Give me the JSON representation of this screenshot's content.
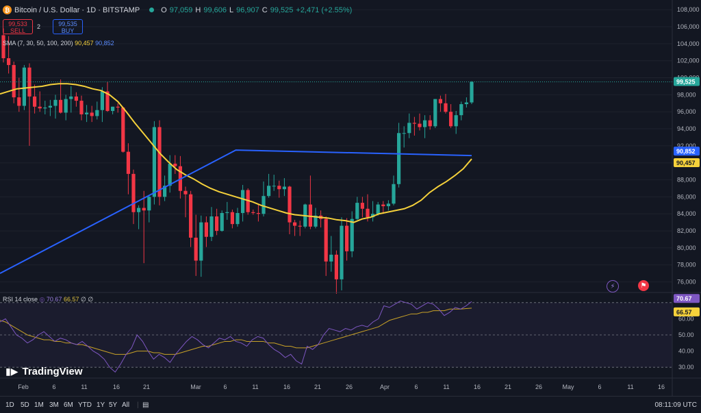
{
  "header": {
    "symbol": "Bitcoin / U.S. Dollar · 1D · BITSTAMP",
    "open_label": "O",
    "open": "97,059",
    "high_label": "H",
    "high": "99,606",
    "low_label": "L",
    "low": "96,907",
    "close_label": "C",
    "close": "99,525",
    "change": "+2,471 (+2.55%)"
  },
  "trade": {
    "sell_price": "99,533",
    "sell_label": "SELL",
    "spread": "2",
    "buy_price": "99,535",
    "buy_label": "BUY"
  },
  "sma": {
    "label": "SMA (7, 30, 50, 100, 200)",
    "value1": "90,457",
    "value2": "90,852"
  },
  "rsi": {
    "label": "RSI 14 close",
    "value1": "70.67",
    "value2": "66.57",
    "extra": "∅ ∅"
  },
  "brand": "TradingView",
  "price_axis": {
    "ticks": [
      "108,000",
      "106,000",
      "104,000",
      "102,000",
      "100,000",
      "98,000",
      "96,000",
      "94,000",
      "92,000",
      "90,000",
      "88,000",
      "86,000",
      "84,000",
      "82,000",
      "80,000",
      "78,000",
      "76,000"
    ],
    "last_price": "99,525",
    "sma_blue_label": "90,852",
    "sma_yellow_label": "90,457"
  },
  "rsi_axis": {
    "ticks": [
      "60.00",
      "50.00",
      "40.00",
      "30.00"
    ],
    "rsi_label": "70.67",
    "ma_label": "66.57"
  },
  "time_axis": [
    "Feb",
    "6",
    "11",
    "16",
    "21",
    "Mar",
    "6",
    "11",
    "16",
    "21",
    "26",
    "Apr",
    "6",
    "11",
    "16",
    "21",
    "26",
    "May",
    "6",
    "11",
    "16"
  ],
  "timeframes": [
    "1D",
    "5D",
    "1M",
    "3M",
    "6M",
    "YTD",
    "1Y",
    "5Y",
    "All"
  ],
  "clock": "08:11:09 UTC",
  "colors": {
    "up": "#26a69a",
    "down": "#f23645",
    "sma_fast": "#f5d13b",
    "sma_slow": "#2962ff",
    "rsi": "#7e57c2",
    "rsi_ma": "#c9a227"
  },
  "chart_data": {
    "type": "candlestick",
    "title": "Bitcoin / U.S. Dollar · 1D · BITSTAMP",
    "x_start_label": "Feb",
    "candles": [
      [
        105000,
        105800,
        101800,
        102300
      ],
      [
        102300,
        104900,
        100500,
        101500
      ],
      [
        101500,
        101900,
        97000,
        97700
      ],
      [
        97700,
        100000,
        96000,
        96700
      ],
      [
        96700,
        101500,
        96200,
        101200
      ],
      [
        101200,
        101700,
        92000,
        97800
      ],
      [
        97800,
        99200,
        95800,
        96600
      ],
      [
        96600,
        98400,
        96000,
        96400
      ],
      [
        96400,
        97300,
        95700,
        96500
      ],
      [
        96500,
        97400,
        95500,
        96700
      ],
      [
        96700,
        98000,
        95200,
        97400
      ],
      [
        97400,
        99800,
        95800,
        95900
      ],
      [
        95900,
        98000,
        95000,
        97500
      ],
      [
        97500,
        99000,
        95900,
        97800
      ],
      [
        97800,
        98300,
        96600,
        97300
      ],
      [
        97300,
        97900,
        95000,
        95700
      ],
      [
        95700,
        96800,
        94800,
        95900
      ],
      [
        95900,
        96700,
        94800,
        95500
      ],
      [
        95500,
        97200,
        95100,
        96200
      ],
      [
        96200,
        98900,
        94800,
        98400
      ],
      [
        98400,
        99500,
        96000,
        96100
      ],
      [
        96100,
        96600,
        95700,
        96600
      ],
      [
        96600,
        97000,
        95900,
        96500
      ],
      [
        96500,
        96600,
        91200,
        91300
      ],
      [
        91300,
        92300,
        86300,
        88700
      ],
      [
        88700,
        89200,
        82800,
        84200
      ],
      [
        84200,
        85000,
        82200,
        84700
      ],
      [
        84700,
        86700,
        78200,
        84400
      ],
      [
        84400,
        86100,
        83000,
        86000
      ],
      [
        86000,
        94900,
        85100,
        94200
      ],
      [
        94200,
        95000,
        85000,
        86000
      ],
      [
        86000,
        88500,
        85500,
        87300
      ],
      [
        87300,
        90900,
        86500,
        89900
      ],
      [
        89900,
        90900,
        88700,
        89600
      ],
      [
        89600,
        90800,
        85800,
        86700
      ],
      [
        86700,
        87200,
        83600,
        86300
      ],
      [
        86300,
        86700,
        80100,
        81200
      ],
      [
        81200,
        83900,
        76700,
        78500
      ],
      [
        78500,
        83800,
        76600,
        83000
      ],
      [
        83000,
        83700,
        80100,
        81300
      ],
      [
        81300,
        84800,
        80800,
        83700
      ],
      [
        83700,
        84600,
        81500,
        82000
      ],
      [
        82000,
        84400,
        81900,
        84100
      ],
      [
        84100,
        85400,
        83300,
        84200
      ],
      [
        84200,
        84500,
        82300,
        82800
      ],
      [
        82800,
        84700,
        82500,
        84100
      ],
      [
        84100,
        87400,
        83100,
        86800
      ],
      [
        86800,
        87000,
        83900,
        84200
      ],
      [
        84200,
        84500,
        83900,
        84100
      ],
      [
        84100,
        85100,
        83100,
        84000
      ],
      [
        84000,
        87800,
        83700,
        86100
      ],
      [
        86100,
        88700,
        85900,
        87300
      ],
      [
        87300,
        88600,
        86700,
        87300
      ],
      [
        87300,
        87900,
        85900,
        86900
      ],
      [
        86900,
        88200,
        86100,
        87200
      ],
      [
        87200,
        87300,
        81600,
        83000
      ],
      [
        83000,
        83300,
        81400,
        82600
      ],
      [
        82600,
        83200,
        81400,
        82500
      ],
      [
        82500,
        85200,
        82300,
        85100
      ],
      [
        85100,
        88500,
        82200,
        82500
      ],
      [
        82500,
        84700,
        82300,
        83800
      ],
      [
        83800,
        84400,
        82400,
        83400
      ],
      [
        83400,
        83700,
        76700,
        78400
      ],
      [
        78400,
        81400,
        77200,
        79200
      ],
      [
        79200,
        79700,
        74600,
        76300
      ],
      [
        76300,
        83600,
        75000,
        82600
      ],
      [
        82600,
        83500,
        78500,
        79600
      ],
      [
        79600,
        84300,
        78900,
        83400
      ],
      [
        83400,
        86000,
        83300,
        85300
      ],
      [
        85300,
        86000,
        83600,
        84600
      ],
      [
        84600,
        86300,
        83100,
        83600
      ],
      [
        83600,
        85500,
        83100,
        84000
      ],
      [
        84000,
        85400,
        83800,
        85100
      ],
      [
        85100,
        85500,
        84000,
        84900
      ],
      [
        84900,
        85600,
        84400,
        85200
      ],
      [
        85200,
        88500,
        85000,
        87500
      ],
      [
        87500,
        94700,
        87100,
        93500
      ],
      [
        93500,
        94300,
        91800,
        93500
      ],
      [
        93500,
        95800,
        92900,
        94700
      ],
      [
        94700,
        95400,
        93200,
        94600
      ],
      [
        94600,
        95800,
        93800,
        94200
      ],
      [
        94200,
        95600,
        92900,
        95000
      ],
      [
        95000,
        95600,
        93900,
        94300
      ],
      [
        94300,
        97500,
        94100,
        97500
      ],
      [
        97500,
        97900,
        96000,
        97000
      ],
      [
        97000,
        98100,
        95800,
        96000
      ],
      [
        96000,
        96900,
        94100,
        94300
      ],
      [
        94300,
        96100,
        93400,
        95600
      ],
      [
        95600,
        97200,
        95000,
        96900
      ],
      [
        96900,
        97700,
        96500,
        97100
      ],
      [
        97100,
        99606,
        96907,
        99525
      ]
    ],
    "sma_yellow": [
      98100,
      98400,
      98700,
      98800,
      98900,
      99000,
      99200,
      99300,
      99300,
      99200,
      99000,
      98700,
      98500,
      98000,
      97200,
      96000,
      94700,
      93500,
      92300,
      91100,
      90100,
      89200,
      88600,
      88100,
      87500,
      87000,
      86600,
      86300,
      86000,
      85700,
      85400,
      85000,
      84700,
      84400,
      84100,
      83900,
      83800,
      83700,
      83600,
      83500,
      83300,
      83200,
      83000,
      83400,
      83600,
      84000,
      84200,
      84400,
      84600,
      85000,
      85600,
      86500,
      87200,
      87800,
      88500,
      89300,
      90457
    ],
    "sma_blue": [
      77000,
      91500,
      90852
    ],
    "rsi_line": [
      58,
      60,
      55,
      50,
      48,
      45,
      47,
      50,
      52,
      49,
      46,
      48,
      47,
      45,
      44,
      46,
      43,
      40,
      38,
      35,
      30,
      27,
      32,
      38,
      42,
      50,
      46,
      40,
      35,
      38,
      36,
      33,
      38,
      42,
      46,
      49,
      47,
      44,
      42,
      45,
      48,
      47,
      49,
      46,
      45,
      43,
      47,
      49,
      48,
      44,
      41,
      39,
      36,
      38,
      34,
      32,
      43,
      41,
      44,
      50,
      54,
      53,
      52,
      54,
      53,
      55,
      56,
      55,
      58,
      60,
      68,
      67,
      69,
      71,
      70,
      69,
      66,
      68,
      70,
      69,
      66,
      62,
      64,
      67,
      66,
      68,
      70.67
    ],
    "rsi_ma": [
      59,
      58,
      56,
      54,
      52,
      50,
      49,
      48,
      47,
      47,
      46,
      46,
      45,
      45,
      44,
      44,
      43,
      42,
      41,
      40,
      39,
      38,
      38,
      38,
      39,
      40,
      40,
      40,
      39,
      39,
      38,
      38,
      38,
      39,
      40,
      41,
      42,
      43,
      43,
      44,
      45,
      46,
      46,
      47,
      47,
      46,
      46,
      46,
      46,
      45,
      45,
      44,
      43,
      43,
      42,
      42,
      42,
      43,
      44,
      45,
      46,
      47,
      48,
      49,
      50,
      51,
      52,
      53,
      54,
      55,
      57,
      59,
      60,
      61,
      62,
      63,
      63,
      64,
      64,
      65,
      65,
      65,
      66,
      66,
      66,
      66.3,
      66.57
    ],
    "price_ylim": [
      75000,
      108500
    ],
    "rsi_ylim": [
      25,
      75
    ],
    "rsi_levels": [
      70,
      50,
      30
    ]
  }
}
